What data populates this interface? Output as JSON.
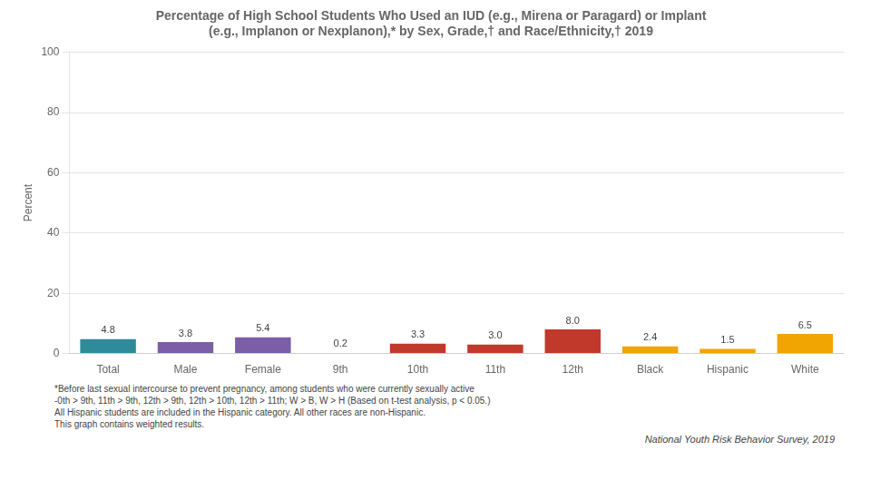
{
  "chart_data": {
    "type": "bar",
    "title": [
      "Percentage of High School Students Who Used an IUD (e.g., Mirena or Paragard) or Implant",
      "(e.g., Implanon or Nexplanon),* by Sex, Grade,† and Race/Ethnicity,† 2019"
    ],
    "categories": [
      "Total",
      "Male",
      "Female",
      "9th",
      "10th",
      "11th",
      "12th",
      "Black",
      "Hispanic",
      "White"
    ],
    "values": [
      4.8,
      3.8,
      5.4,
      0.2,
      3.3,
      3.0,
      8.0,
      2.4,
      1.5,
      6.5
    ],
    "value_labels": [
      "4.8",
      "3.8",
      "5.4",
      "0.2",
      "3.3",
      "3.0",
      "8.0",
      "2.4",
      "1.5",
      "6.5"
    ],
    "colors": [
      "#2e8b9a",
      "#7b5ea7",
      "#7b5ea7",
      "#c0392b",
      "#c0392b",
      "#c0392b",
      "#c0392b",
      "#f0a500",
      "#f0a500",
      "#f0a500"
    ],
    "ylabel": "Percent",
    "ylim": [
      0,
      100
    ],
    "yticks": [
      0,
      20,
      40,
      60,
      80,
      100
    ],
    "grid": true,
    "data_labels": true,
    "annotations": [
      "*Before last sexual intercourse to prevent pregnancy, among students who were currently sexually active",
      "‑0th > 9th, 11th > 9th, 12th > 9th, 12th > 10th, 12th > 11th; W > B, W > H (Based on t-test analysis, p < 0.05.)",
      "All Hispanic students are included in the Hispanic category.  All other races are non-Hispanic.",
      "This graph contains weighted results.",
      "National Youth Risk Behavior Survey, 2019"
    ]
  }
}
